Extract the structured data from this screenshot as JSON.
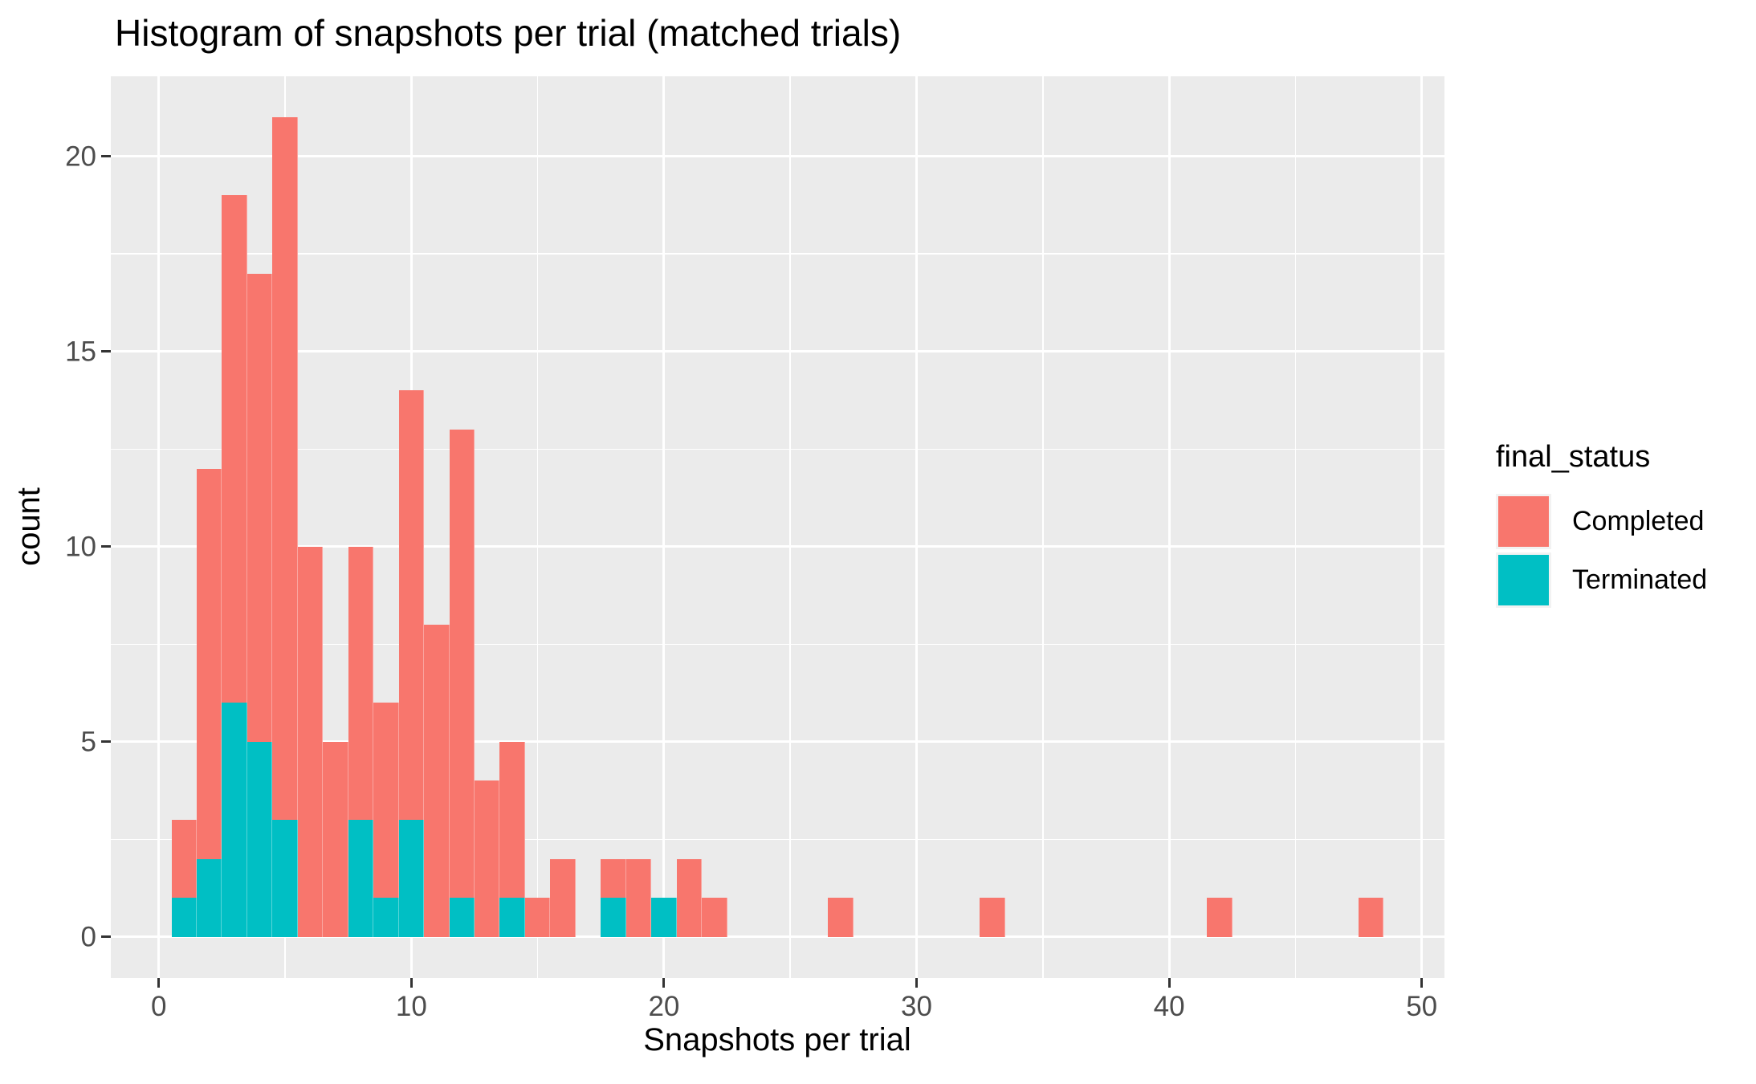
{
  "chart_data": {
    "type": "bar",
    "subtype": "stacked-histogram",
    "title": "Histogram of snapshots per trial (matched trials)",
    "xlabel": "Snapshots per trial",
    "ylabel": "count",
    "x_ticks": [
      0,
      10,
      20,
      30,
      40,
      50
    ],
    "y_ticks": [
      0,
      5,
      10,
      15,
      20
    ],
    "xlim": [
      -1.9,
      50.9
    ],
    "ylim": [
      -1.05,
      22.05
    ],
    "bin_width": 1,
    "grid": {
      "major": true,
      "minor": true,
      "color": "#FFFFFF"
    },
    "colors": {
      "panel_bg": "#EBEBEB",
      "completed": "#F8766D",
      "terminated": "#00BFC4",
      "tick_text": "#4D4D4D",
      "tick_mark": "#333333",
      "text": "#000000"
    },
    "legend": {
      "title": "final_status",
      "position": "right",
      "entries": [
        {
          "label": "Completed",
          "color": "#F8766D"
        },
        {
          "label": "Terminated",
          "color": "#00BFC4"
        }
      ]
    },
    "series_note": "stacked: Terminated on bottom, Completed on top; bins centered on integer x, width 1",
    "bins": [
      {
        "x": 1,
        "completed": 2,
        "terminated": 1
      },
      {
        "x": 2,
        "completed": 10,
        "terminated": 2
      },
      {
        "x": 3,
        "completed": 13,
        "terminated": 6
      },
      {
        "x": 4,
        "completed": 12,
        "terminated": 5
      },
      {
        "x": 5,
        "completed": 18,
        "terminated": 3
      },
      {
        "x": 6,
        "completed": 10,
        "terminated": 0
      },
      {
        "x": 7,
        "completed": 5,
        "terminated": 0
      },
      {
        "x": 8,
        "completed": 7,
        "terminated": 3
      },
      {
        "x": 9,
        "completed": 5,
        "terminated": 1
      },
      {
        "x": 10,
        "completed": 11,
        "terminated": 3
      },
      {
        "x": 11,
        "completed": 8,
        "terminated": 0
      },
      {
        "x": 12,
        "completed": 12,
        "terminated": 1
      },
      {
        "x": 13,
        "completed": 4,
        "terminated": 0
      },
      {
        "x": 14,
        "completed": 4,
        "terminated": 1
      },
      {
        "x": 15,
        "completed": 1,
        "terminated": 0
      },
      {
        "x": 16,
        "completed": 2,
        "terminated": 0
      },
      {
        "x": 18,
        "completed": 1,
        "terminated": 1
      },
      {
        "x": 19,
        "completed": 2,
        "terminated": 0
      },
      {
        "x": 20,
        "completed": 0,
        "terminated": 1
      },
      {
        "x": 21,
        "completed": 2,
        "terminated": 0
      },
      {
        "x": 22,
        "completed": 1,
        "terminated": 0
      },
      {
        "x": 27,
        "completed": 1,
        "terminated": 0
      },
      {
        "x": 33,
        "completed": 1,
        "terminated": 0
      },
      {
        "x": 42,
        "completed": 1,
        "terminated": 0
      },
      {
        "x": 48,
        "completed": 1,
        "terminated": 0
      }
    ]
  }
}
